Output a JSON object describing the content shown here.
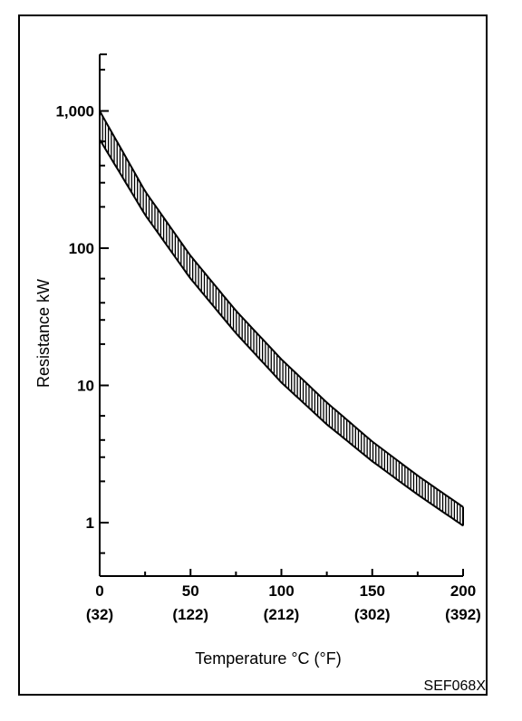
{
  "chart_data": {
    "type": "area",
    "title": "",
    "xlabel": "Temperature °C  (°F)",
    "ylabel": "Resistance kW",
    "x_ticks": [
      {
        "value": 0,
        "label": "0",
        "sublabel": "(32)"
      },
      {
        "value": 50,
        "label": "50",
        "sublabel": "(122)"
      },
      {
        "value": 100,
        "label": "100",
        "sublabel": "(212)"
      },
      {
        "value": 150,
        "label": "150",
        "sublabel": "(302)"
      },
      {
        "value": 200,
        "label": "200",
        "sublabel": "(392)"
      }
    ],
    "y_ticks": [
      {
        "value": 1,
        "label": "1"
      },
      {
        "value": 10,
        "label": "10"
      },
      {
        "value": 100,
        "label": "100"
      },
      {
        "value": 1000,
        "label": "1,000"
      }
    ],
    "xlim": [
      0,
      200
    ],
    "ylim": [
      0.4,
      2500
    ],
    "y_scale": "log",
    "grid": false,
    "series": [
      {
        "values_x": [
          0,
          25,
          50,
          75,
          100,
          125,
          150,
          175,
          200
        ],
        "values_y": [
          1000,
          260,
          88,
          35,
          15.5,
          7.5,
          3.9,
          2.2,
          1.3
        ]
      },
      {
        "values_x": [
          0,
          25,
          50,
          75,
          100,
          125,
          150,
          175,
          200
        ],
        "values_y": [
          620,
          175,
          60,
          24,
          10.5,
          5.2,
          2.8,
          1.6,
          0.95
        ]
      }
    ],
    "band_fill": "hatched-vertical"
  },
  "figure_code": "SEF068X"
}
